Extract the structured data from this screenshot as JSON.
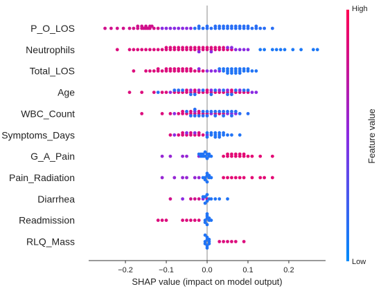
{
  "chart_data": {
    "type": "scatter",
    "subtype": "shap-beeswarm",
    "title": "",
    "xlabel": "SHAP value (impact on model output)",
    "ylabel": "",
    "xlim": [
      -0.29,
      0.29
    ],
    "xticks": [
      -0.2,
      -0.1,
      0.0,
      0.1,
      0.2
    ],
    "xtick_labels": [
      "−0.2",
      "−0.1",
      "0.0",
      "0.1",
      "0.2"
    ],
    "zero_line": true,
    "grid": false,
    "features": [
      "P_O_LOS",
      "Neutrophils",
      "Total_LOS",
      "Age",
      "WBC_Count",
      "Symptoms_Days",
      "G_A_Pain",
      "Pain_Radiation",
      "Diarrhea",
      "Readmission",
      "RLQ_Mass"
    ],
    "colorbar": {
      "label": "Feature value",
      "high_label": "High",
      "low_label": "Low",
      "high_color": "#ff0052",
      "low_color": "#008bfb"
    },
    "colors": {
      "high": "#ff0052",
      "low": "#008bfb"
    },
    "series": [
      {
        "feature": "P_O_LOS",
        "v": 0.8,
        "x": [
          -0.25,
          -0.235,
          -0.22,
          -0.205,
          -0.19,
          -0.18,
          -0.17,
          -0.16,
          -0.155,
          -0.15,
          -0.14,
          -0.13,
          -0.12,
          -0.17,
          -0.16,
          -0.15,
          -0.145,
          -0.14,
          -0.135
        ]
      },
      {
        "feature": "P_O_LOS",
        "v": 0.5,
        "x": [
          -0.11,
          -0.1,
          -0.09,
          -0.08,
          -0.07,
          -0.06,
          -0.05,
          -0.04
        ]
      },
      {
        "feature": "P_O_LOS",
        "v": 0.15,
        "x": [
          -0.03,
          -0.02,
          -0.01,
          0.0,
          0.01,
          0.02,
          0.03,
          0.04,
          0.05,
          0.06,
          0.07,
          0.08,
          0.09,
          0.1,
          0.11,
          0.12,
          0.13,
          0.14,
          0.16,
          0.02,
          0.04,
          0.06,
          0.08,
          0.1,
          0.12,
          -0.02,
          0.0,
          0.03,
          0.05,
          0.07,
          0.09
        ]
      },
      {
        "feature": "Neutrophils",
        "v": 0.85,
        "x": [
          -0.22,
          -0.19,
          -0.18,
          -0.17,
          -0.16,
          -0.15,
          -0.14,
          -0.13,
          -0.12,
          -0.11,
          -0.1,
          -0.09,
          -0.08,
          -0.07,
          -0.06,
          -0.05,
          -0.04,
          -0.03,
          -0.02,
          -0.01,
          0.0,
          0.01,
          0.02,
          0.03,
          0.04,
          0.05,
          0.06,
          -0.1,
          -0.08,
          -0.06,
          -0.04,
          -0.02,
          0.0,
          0.02,
          0.04,
          -0.09,
          -0.07,
          -0.05,
          -0.03,
          -0.01,
          0.01,
          0.03
        ]
      },
      {
        "feature": "Neutrophils",
        "v": 0.5,
        "x": [
          0.07,
          0.08,
          0.09,
          0.1,
          -0.02,
          0.01,
          0.05,
          0.06
        ]
      },
      {
        "feature": "Neutrophils",
        "v": 0.1,
        "x": [
          0.13,
          0.14,
          0.16,
          0.17,
          0.18,
          0.19,
          0.21,
          0.23,
          0.26,
          0.27
        ]
      },
      {
        "feature": "Total_LOS",
        "v": 0.85,
        "x": [
          -0.18,
          -0.15,
          -0.14,
          -0.13,
          -0.12,
          -0.11,
          -0.1,
          -0.09,
          -0.08,
          -0.07,
          -0.06,
          -0.05,
          -0.04,
          -0.03,
          -0.02,
          -0.01,
          -0.12,
          -0.1,
          -0.08,
          -0.06,
          -0.04,
          -0.09,
          -0.07,
          -0.05
        ]
      },
      {
        "feature": "Total_LOS",
        "v": 0.5,
        "x": [
          0.0,
          0.01,
          0.02,
          -0.02,
          0.03
        ]
      },
      {
        "feature": "Total_LOS",
        "v": 0.12,
        "x": [
          0.03,
          0.04,
          0.05,
          0.06,
          0.07,
          0.08,
          0.09,
          0.1,
          0.11,
          0.12,
          0.04,
          0.05,
          0.06,
          0.07,
          0.08,
          0.09,
          0.05,
          0.06,
          0.07,
          0.08,
          0.1
        ]
      },
      {
        "feature": "Age",
        "v": 0.85,
        "x": [
          -0.19,
          -0.16,
          -0.13,
          -0.11,
          -0.1,
          -0.08,
          -0.07,
          -0.06,
          -0.05,
          -0.04,
          -0.03,
          -0.02,
          -0.01,
          0.0,
          0.01,
          0.02,
          0.04,
          0.05,
          0.06,
          0.07,
          0.08,
          0.09,
          0.1,
          -0.05,
          -0.03,
          0.0,
          0.03,
          0.06
        ]
      },
      {
        "feature": "Age",
        "v": 0.5,
        "x": [
          -0.09,
          -0.04,
          -0.02,
          0.01,
          0.03,
          0.05,
          0.08,
          0.11,
          0.12
        ]
      },
      {
        "feature": "Age",
        "v": 0.15,
        "x": [
          -0.12,
          -0.08,
          -0.06,
          -0.04,
          -0.01,
          0.02,
          0.04,
          0.06,
          0.07,
          0.09,
          0.1,
          -0.07,
          -0.03,
          0.01,
          0.05
        ]
      },
      {
        "feature": "WBC_Count",
        "v": 0.85,
        "x": [
          -0.16,
          -0.11,
          -0.09,
          -0.07,
          -0.06,
          -0.05,
          -0.04,
          -0.03,
          -0.02,
          -0.01,
          0.0,
          0.02,
          0.03,
          0.04,
          -0.06,
          -0.04,
          -0.02
        ]
      },
      {
        "feature": "WBC_Count",
        "v": 0.5,
        "x": [
          -0.08,
          -0.03,
          0.01,
          0.05,
          0.06,
          0.07
        ]
      },
      {
        "feature": "WBC_Count",
        "v": 0.15,
        "x": [
          -0.05,
          -0.04,
          -0.03,
          -0.02,
          -0.01,
          0.0,
          0.01,
          0.02,
          0.03,
          0.04,
          0.05,
          0.06,
          0.07,
          0.08,
          0.1,
          0.0,
          0.02,
          0.04,
          0.06,
          -0.03,
          -0.01
        ]
      },
      {
        "feature": "Symptoms_Days",
        "v": 0.85,
        "x": [
          -0.09,
          -0.07,
          -0.06,
          -0.05,
          -0.04,
          -0.03,
          -0.02,
          -0.01,
          -0.06,
          -0.04,
          -0.02
        ]
      },
      {
        "feature": "Symptoms_Days",
        "v": 0.5,
        "x": [
          -0.08,
          -0.03,
          0.0,
          -0.05
        ]
      },
      {
        "feature": "Symptoms_Days",
        "v": 0.12,
        "x": [
          0.0,
          0.01,
          0.02,
          0.03,
          0.04,
          0.05,
          0.06,
          0.08,
          0.01,
          0.02,
          0.03,
          0.04,
          0.02,
          0.03,
          0.0
        ]
      },
      {
        "feature": "G_A_Pain",
        "v": 0.88,
        "x": [
          0.04,
          0.05,
          0.06,
          0.07,
          0.08,
          0.09,
          0.1,
          0.11,
          0.13,
          0.16,
          0.05,
          0.06,
          0.07,
          0.08,
          0.09
        ]
      },
      {
        "feature": "G_A_Pain",
        "v": 0.55,
        "x": [
          -0.11,
          -0.09,
          -0.06,
          -0.05,
          -0.02
        ]
      },
      {
        "feature": "G_A_Pain",
        "v": 0.12,
        "x": [
          -0.02,
          -0.015,
          -0.01,
          -0.005,
          0.0,
          0.005,
          0.01,
          -0.01,
          0.0,
          -0.015,
          -0.005,
          0.005
        ]
      },
      {
        "feature": "Pain_Radiation",
        "v": 0.88,
        "x": [
          0.04,
          0.05,
          0.06,
          0.07,
          0.08,
          0.09,
          0.11,
          0.13,
          0.14,
          0.16
        ]
      },
      {
        "feature": "Pain_Radiation",
        "v": 0.55,
        "x": [
          -0.11,
          -0.08,
          -0.06,
          -0.05,
          -0.03,
          -0.02
        ]
      },
      {
        "feature": "Pain_Radiation",
        "v": 0.12,
        "x": [
          -0.01,
          -0.005,
          0.0,
          0.005,
          0.01,
          -0.005,
          0.0,
          0.005,
          0.0
        ]
      },
      {
        "feature": "Diarrhea",
        "v": 0.8,
        "x": [
          -0.09,
          -0.04,
          -0.03,
          -0.02,
          0.0
        ]
      },
      {
        "feature": "Diarrhea",
        "v": 0.5,
        "x": [
          -0.06,
          -0.01
        ]
      },
      {
        "feature": "Diarrhea",
        "v": 0.12,
        "x": [
          -0.01,
          -0.005,
          0.0,
          0.005,
          0.01,
          0.02,
          0.03,
          0.05,
          0.0,
          -0.005
        ]
      },
      {
        "feature": "Readmission",
        "v": 0.85,
        "x": [
          -0.12,
          -0.11,
          -0.1,
          -0.06,
          -0.05,
          -0.04,
          -0.03,
          -0.02
        ]
      },
      {
        "feature": "Readmission",
        "v": 0.12,
        "x": [
          -0.005,
          0.0,
          0.005,
          0.01,
          -0.005,
          0.0,
          0.005,
          0.0,
          0.0
        ]
      },
      {
        "feature": "RLQ_Mass",
        "v": 0.85,
        "x": [
          0.03,
          0.04,
          0.05,
          0.06,
          0.07,
          0.09
        ]
      },
      {
        "feature": "RLQ_Mass",
        "v": 0.12,
        "x": [
          -0.005,
          0.0,
          0.005,
          -0.005,
          0.0,
          0.005,
          0.0,
          -0.005,
          0.0,
          0.005
        ]
      }
    ]
  }
}
